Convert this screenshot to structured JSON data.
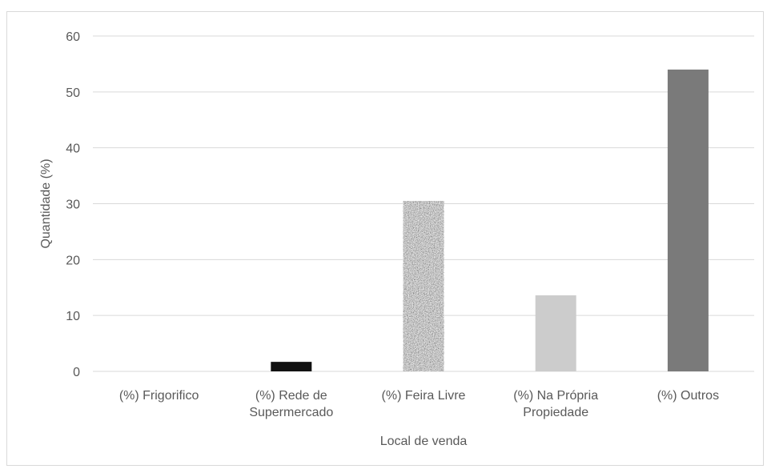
{
  "chart_data": {
    "type": "bar",
    "title": "",
    "xlabel": "Local de venda",
    "ylabel": "Quantidade  (%)",
    "ylim": [
      0,
      60
    ],
    "yticks": [
      0,
      10,
      20,
      30,
      40,
      50,
      60
    ],
    "grid": true,
    "legend": "none",
    "categories": [
      [
        "(%) Frigorifico"
      ],
      [
        "(%) Rede de",
        "Supermercado"
      ],
      [
        "(%) Feira Livre"
      ],
      [
        "(%) Na Própria",
        "Propiedade"
      ],
      [
        "(%) Outros"
      ]
    ],
    "values": [
      0,
      1.7,
      30.5,
      13.6,
      54
    ],
    "bar_styles": [
      "solid-black",
      "solid-black",
      "granite-texture",
      "solid-light-gray",
      "solid-dark-gray"
    ],
    "colors": {
      "black": "#111111",
      "light_gray": "#cccccc",
      "dark_gray": "#7a7a7a",
      "grid": "#d9d9d9",
      "text": "#595959"
    }
  }
}
